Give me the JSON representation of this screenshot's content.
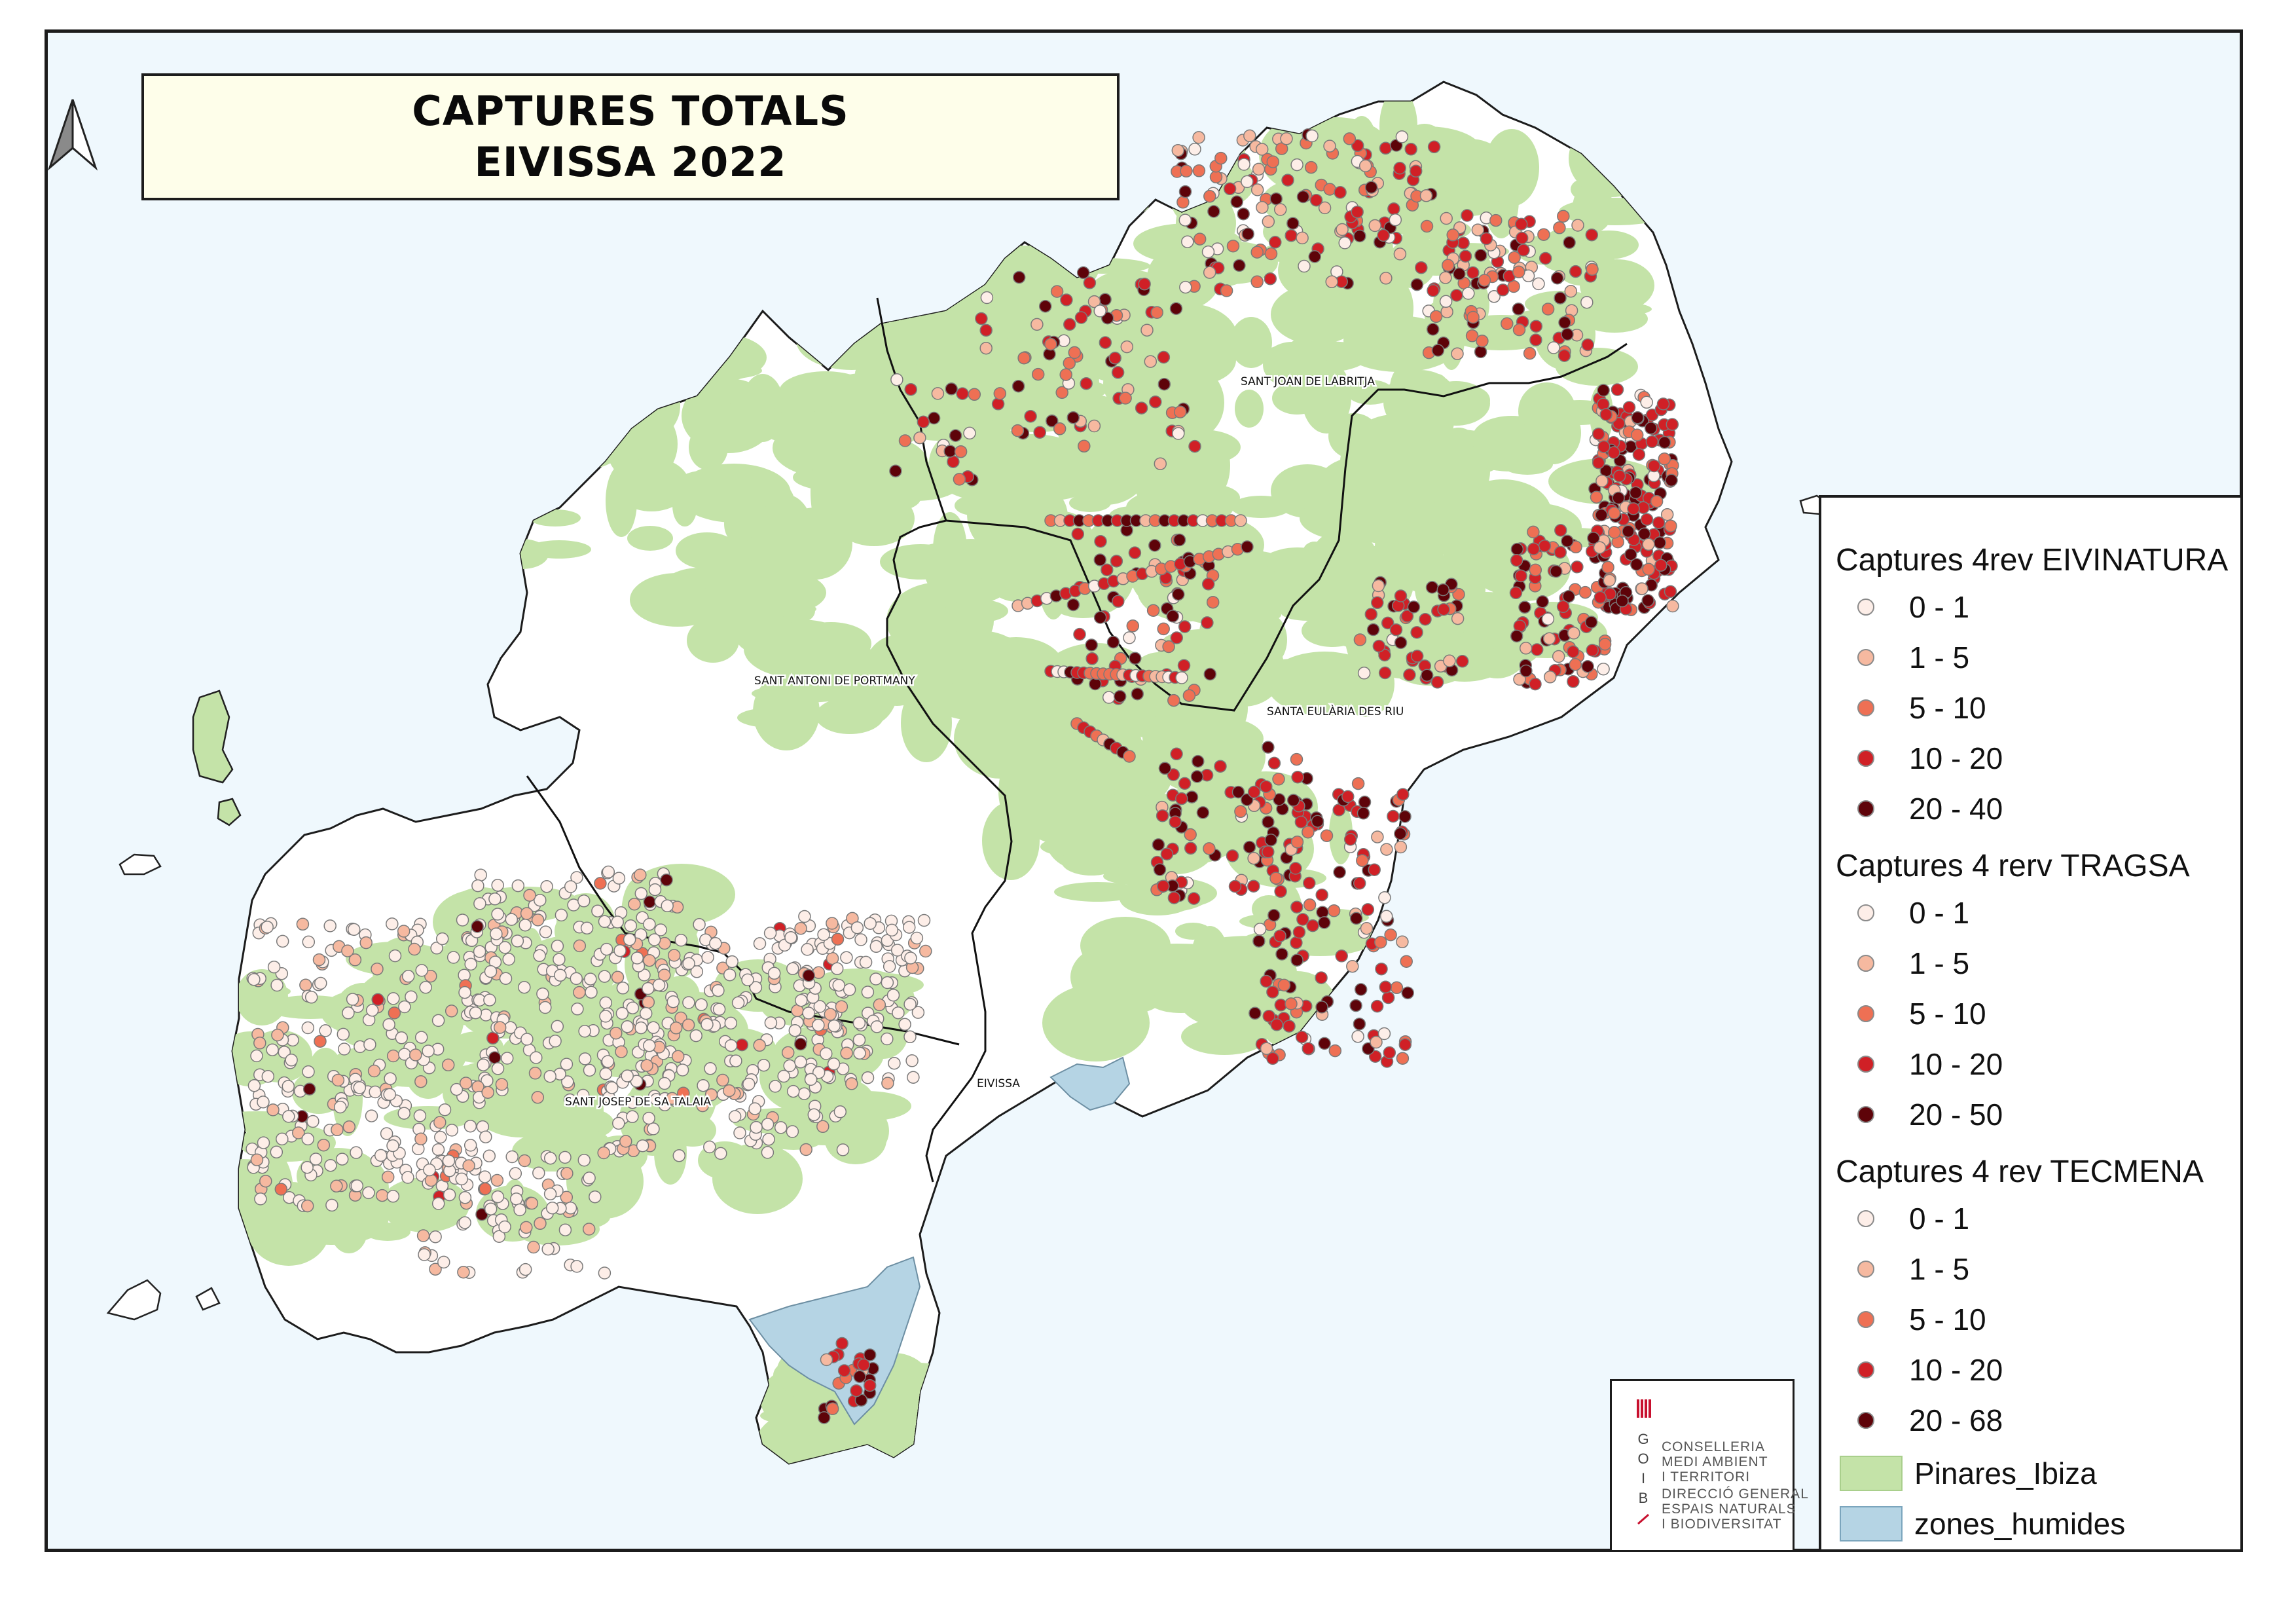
{
  "title": {
    "line1": "CAPTURES TOTALS",
    "line2": "EIVISSA 2022"
  },
  "colors": {
    "sea": "#eff8fd",
    "land": "#ffffff",
    "pinares": "#c4e3a8",
    "zones_humides": "#b5d4e4",
    "class_0_1": "#fdeee8",
    "class_1_5": "#f6b9a0",
    "class_5_10": "#ee7054",
    "class_10_20": "#d02026",
    "class_20_max": "#5e0309"
  },
  "municipalities": {
    "sant_joan": "SANT JOAN DE LABRITJA",
    "sant_antoni": "SANT ANTONI DE PORTMANY",
    "santa_eularia": "SANTA EULÀRIA DES RIU",
    "sant_josep": "SANT JOSEP DE SA TALAIA",
    "eivissa": "EIVISSA"
  },
  "legend": {
    "groups": [
      {
        "title": "Captures 4rev EIVINATURA",
        "classes": [
          "0 - 1",
          "1 - 5",
          "5 - 10",
          "10 - 20",
          "20 - 40"
        ]
      },
      {
        "title": "Captures 4 rerv TRAGSA",
        "classes": [
          "0 - 1",
          "1 - 5",
          "5 - 10",
          "10 - 20",
          "20 - 50"
        ]
      },
      {
        "title": "Captures 4 rev  TECMENA",
        "classes": [
          "0 - 1",
          "1 - 5",
          "5 - 10",
          "10 - 20",
          "20 - 68"
        ]
      }
    ],
    "layers": [
      {
        "label": "Pinares_Ibiza"
      },
      {
        "label": "zones_humides"
      }
    ]
  },
  "logo": {
    "lines": [
      "CONSELLERIA",
      "MEDI AMBIENT",
      "I TERRITORI",
      "DIRECCIÓ GENERAL",
      "ESPAIS NATURALS",
      "I BIODIVERSITAT"
    ],
    "letters": [
      "G",
      "O",
      "I",
      "B"
    ]
  },
  "north_arrow": {
    "icon": "north-arrow-icon"
  }
}
